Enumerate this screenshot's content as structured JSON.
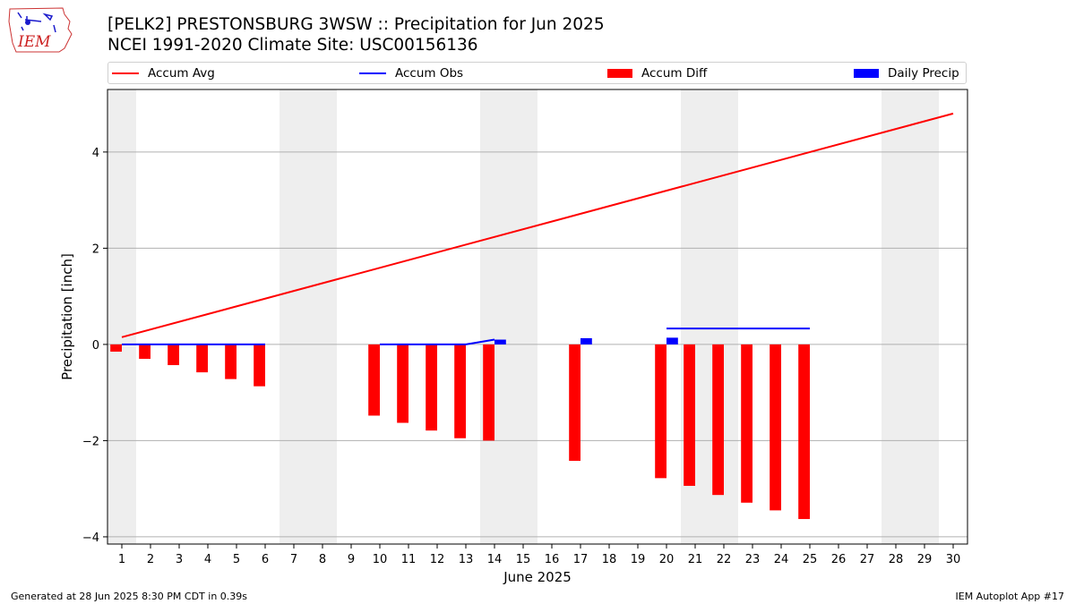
{
  "header": {
    "title": "[PELK2] PRESTONSBURG 3WSW :: Precipitation for Jun 2025",
    "subtitle": "NCEI 1991-2020 Climate Site: USC00156136"
  },
  "logo": {
    "text": "IEM"
  },
  "footer": {
    "left": "Generated at 28 Jun 2025 8:30 PM CDT in 0.39s",
    "right": "IEM Autoplot App #17"
  },
  "colors": {
    "avg": "#ff0000",
    "obs": "#0000ff",
    "diff": "#ff0000",
    "daily": "#0000ff",
    "weekend": "#eeeeee",
    "grid": "#b0b0b0"
  },
  "chart_data": {
    "type": "bar",
    "xlabel": "June 2025",
    "ylabel": "Precipitation [inch]",
    "xlim": [
      0.5,
      30.5
    ],
    "ylim": [
      -4.15,
      5.3
    ],
    "yticks": [
      -4,
      -2,
      0,
      2,
      4
    ],
    "grid": true,
    "legend_position": "top",
    "days": [
      1,
      2,
      3,
      4,
      5,
      6,
      7,
      8,
      9,
      10,
      11,
      12,
      13,
      14,
      15,
      16,
      17,
      18,
      19,
      20,
      21,
      22,
      23,
      24,
      25,
      26,
      27,
      28,
      29,
      30
    ],
    "weekend_days": [
      1,
      7,
      8,
      14,
      15,
      21,
      22,
      28,
      29
    ],
    "legend": [
      {
        "label": "Accum Avg",
        "kind": "line",
        "color": "#ff0000"
      },
      {
        "label": "Accum Obs",
        "kind": "line",
        "color": "#0000ff"
      },
      {
        "label": "Accum Diff",
        "kind": "bar",
        "color": "#ff0000"
      },
      {
        "label": "Daily Precip",
        "kind": "bar",
        "color": "#0000ff"
      }
    ],
    "accum_avg": {
      "name": "Accum Avg",
      "x": [
        1,
        30
      ],
      "y": [
        0.15,
        4.8
      ]
    },
    "accum_obs": {
      "name": "Accum Obs",
      "segments": [
        {
          "x": [
            1,
            2,
            3,
            4,
            5,
            6
          ],
          "y": [
            0,
            0,
            0,
            0,
            0,
            0
          ]
        },
        {
          "x": [
            10,
            11,
            12,
            13,
            14
          ],
          "y": [
            0,
            0,
            0,
            0,
            0.1
          ]
        },
        {
          "x": [
            20,
            21,
            22,
            23,
            24,
            25
          ],
          "y": [
            0.33,
            0.33,
            0.33,
            0.33,
            0.33,
            0.33
          ]
        }
      ]
    },
    "accum_diff": {
      "name": "Accum Diff",
      "x": [
        1,
        2,
        3,
        4,
        5,
        6,
        10,
        11,
        12,
        13,
        14,
        17,
        20,
        21,
        22,
        23,
        24,
        25
      ],
      "values": [
        -0.15,
        -0.3,
        -0.43,
        -0.58,
        -0.72,
        -0.87,
        -1.48,
        -1.63,
        -1.79,
        -1.95,
        -2.0,
        -2.42,
        -2.78,
        -2.94,
        -3.13,
        -3.29,
        -3.45,
        -3.63
      ]
    },
    "daily_precip": {
      "name": "Daily Precip",
      "x": [
        14,
        17,
        20
      ],
      "values": [
        0.1,
        0.13,
        0.14
      ]
    }
  }
}
